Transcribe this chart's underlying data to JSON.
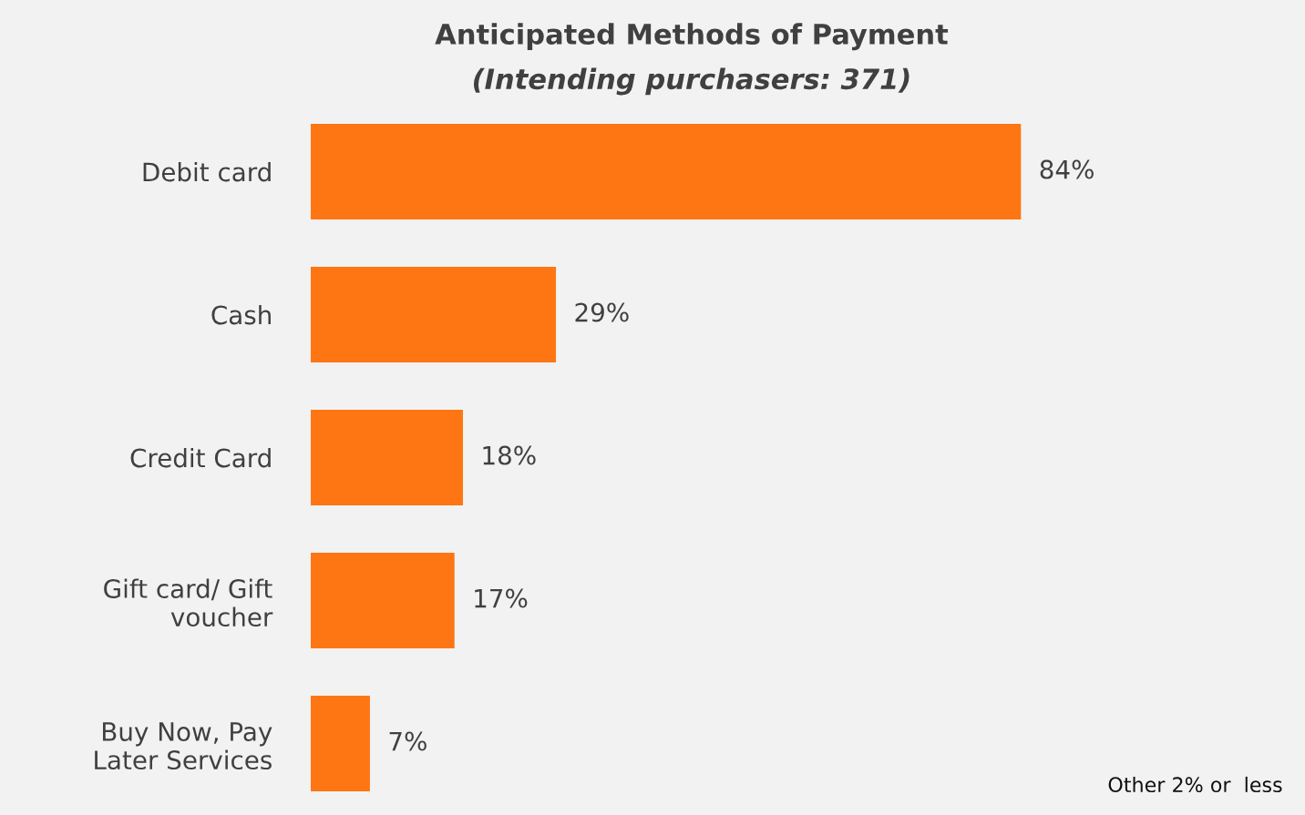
{
  "chart_data": {
    "type": "bar",
    "orientation": "horizontal",
    "title": "Anticipated Methods of Payment",
    "subtitle": "(Intending purchasers: 371)",
    "categories": [
      "Debit card",
      "Cash",
      "Credit Card",
      "Gift card/ Gift\nvoucher",
      "Buy Now, Pay\nLater Services"
    ],
    "values": [
      84,
      29,
      18,
      17,
      7
    ],
    "value_labels": [
      "84%",
      "29%",
      "18%",
      "17%",
      "7%"
    ],
    "color": "#fd7613",
    "annotations": [
      "Other 2% or  less"
    ]
  }
}
